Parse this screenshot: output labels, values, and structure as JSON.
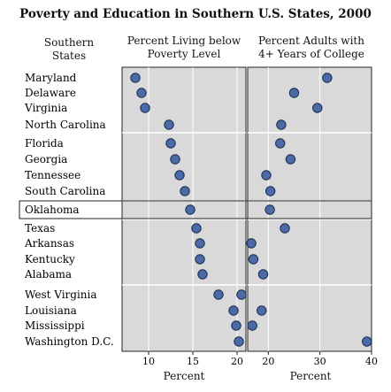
{
  "title": "Poverty and Education in Southern U.S. States, 2000",
  "headers": {
    "states": [
      "Southern",
      "States"
    ],
    "poverty": [
      "Percent Living below",
      "Poverty Level"
    ],
    "college": [
      "Percent Adults with",
      "4+ Years of College"
    ]
  },
  "highlighted_state": "Oklahoma",
  "colors": {
    "dot": "#4a6aa8",
    "dot_outline": "#1a2a4a",
    "panel": "#d9d9d9",
    "grid": "#ffffff"
  },
  "chart_data": [
    {
      "type": "scatter",
      "title": "Percent Living below Poverty Level",
      "xlabel": "Percent",
      "xlim": [
        7,
        21
      ],
      "xticks": [
        10,
        15,
        20
      ],
      "grid": true,
      "categories": [
        "Maryland",
        "Delaware",
        "Virginia",
        "North Carolina",
        "Florida",
        "Georgia",
        "Tennessee",
        "South Carolina",
        "Oklahoma",
        "Texas",
        "Arkansas",
        "Kentucky",
        "Alabama",
        "West Virginia",
        "Louisiana",
        "Mississippi",
        "Washington D.C."
      ],
      "values": [
        8.5,
        9.2,
        9.6,
        12.3,
        12.5,
        13.0,
        13.5,
        14.1,
        14.7,
        15.4,
        15.8,
        15.8,
        16.1,
        17.9,
        19.6,
        19.9,
        20.2
      ]
    },
    {
      "type": "scatter",
      "title": "Percent Adults with 4+ Years of College",
      "xlabel": "Percent",
      "xlim": [
        16,
        40
      ],
      "xticks": [
        20,
        30,
        40
      ],
      "grid": true,
      "categories": [
        "Maryland",
        "Delaware",
        "Virginia",
        "North Carolina",
        "Florida",
        "Georgia",
        "Tennessee",
        "South Carolina",
        "Oklahoma",
        "Texas",
        "Arkansas",
        "Kentucky",
        "Alabama",
        "West Virginia",
        "Louisiana",
        "Mississippi",
        "Washington D.C."
      ],
      "values": [
        31.4,
        25.0,
        29.5,
        22.5,
        22.3,
        24.3,
        19.6,
        20.4,
        20.3,
        23.2,
        16.7,
        17.1,
        19.0,
        14.8,
        18.7,
        16.9,
        39.1
      ]
    }
  ]
}
